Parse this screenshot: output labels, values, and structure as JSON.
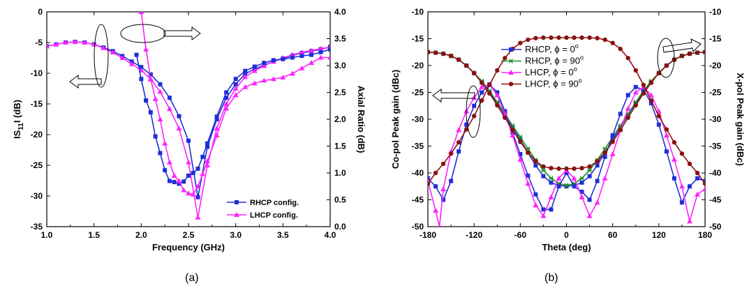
{
  "colors": {
    "blue": "#1f2fd6",
    "magenta": "#ff22ff",
    "green": "#1e8f1e",
    "darkred": "#8b1010",
    "axis": "#000000"
  },
  "chart_data": [
    {
      "type": "line",
      "panel_label": "(a)",
      "xlabel": "Frequency (GHz)",
      "ylabel_left": "IS11I (dB)",
      "ylabel_left_main": "IS",
      "ylabel_left_sub": "11",
      "ylabel_left_tail": "I (dB)",
      "ylabel_right": "Axial Ratio (dB)",
      "xlim": [
        1.0,
        4.0
      ],
      "ylim_left": [
        -35,
        0
      ],
      "ylim_right": [
        0.0,
        4.0
      ],
      "x_ticks": [
        "1.0",
        "1.5",
        "2.0",
        "2.5",
        "3.0",
        "3.5",
        "4.0"
      ],
      "y_ticks_left": [
        "0",
        "-5",
        "-10",
        "-15",
        "-20",
        "-25",
        "-30",
        "-35"
      ],
      "y_ticks_right": [
        "4.0",
        "3.5",
        "3.0",
        "2.5",
        "2.0",
        "1.5",
        "1.0",
        "0.5",
        "0.0"
      ],
      "legend_position": "bottom-right",
      "legend": [
        "RHCP config.",
        "LHCP config."
      ],
      "series": [
        {
          "name": "RHCP config.",
          "axis": "left",
          "marker": "square",
          "color_key": "blue",
          "x": [
            1.0,
            1.1,
            1.2,
            1.3,
            1.4,
            1.5,
            1.6,
            1.7,
            1.8,
            1.9,
            2.0,
            2.1,
            2.2,
            2.3,
            2.4,
            2.5,
            2.6,
            2.7,
            2.8,
            2.9,
            3.0,
            3.1,
            3.2,
            3.3,
            3.4,
            3.5,
            3.6,
            3.7,
            3.8,
            3.9,
            4.0
          ],
          "y": [
            -5.6,
            -5.3,
            -5.0,
            -4.9,
            -5.0,
            -5.3,
            -5.8,
            -6.4,
            -7.2,
            -8.1,
            -9.0,
            -10.2,
            -11.8,
            -14.0,
            -17.0,
            -21.0,
            -30.2,
            -22.0,
            -17.5,
            -14.0,
            -11.8,
            -10.1,
            -9.3,
            -8.7,
            -8.1,
            -7.6,
            -7.1,
            -6.7,
            -6.4,
            -6.1,
            -5.7
          ]
        },
        {
          "name": "LHCP config.",
          "axis": "left",
          "marker": "triangle",
          "color_key": "magenta",
          "x": [
            1.0,
            1.1,
            1.2,
            1.3,
            1.4,
            1.5,
            1.6,
            1.7,
            1.8,
            1.9,
            2.0,
            2.1,
            2.2,
            2.3,
            2.4,
            2.5,
            2.6,
            2.7,
            2.8,
            2.9,
            3.0,
            3.1,
            3.2,
            3.3,
            3.4,
            3.5,
            3.6,
            3.7,
            3.8,
            3.9,
            4.0
          ],
          "y": [
            -5.6,
            -5.3,
            -5.0,
            -4.9,
            -5.0,
            -5.3,
            -5.9,
            -6.6,
            -7.5,
            -8.5,
            -9.5,
            -11.0,
            -13.0,
            -15.8,
            -19.0,
            -24.5,
            -33.5,
            -25.0,
            -19.0,
            -15.0,
            -12.5,
            -10.6,
            -9.6,
            -8.8,
            -8.1,
            -7.5,
            -7.0,
            -6.6,
            -6.3,
            -6.0,
            -5.8
          ]
        },
        {
          "name": "RHCP config.",
          "axis": "right",
          "marker": "square",
          "color_key": "blue",
          "x": [
            1.95,
            2.0,
            2.05,
            2.1,
            2.15,
            2.2,
            2.25,
            2.3,
            2.35,
            2.4,
            2.45,
            2.5,
            2.55,
            2.6,
            2.65,
            2.7,
            2.8,
            2.9,
            3.0,
            3.1,
            3.2,
            3.3,
            3.4,
            3.5,
            3.6,
            3.7,
            3.8,
            3.9,
            4.0
          ],
          "y": [
            3.2,
            2.75,
            2.35,
            2.13,
            1.68,
            1.37,
            1.05,
            0.85,
            0.83,
            0.8,
            0.84,
            0.95,
            1.0,
            1.08,
            1.3,
            1.55,
            2.05,
            2.5,
            2.75,
            2.9,
            2.98,
            3.05,
            3.1,
            3.12,
            3.15,
            3.18,
            3.2,
            3.25,
            3.3
          ]
        },
        {
          "name": "LHCP config.",
          "axis": "right",
          "marker": "triangle",
          "color_key": "magenta",
          "x": [
            2.0,
            2.05,
            2.1,
            2.15,
            2.2,
            2.25,
            2.3,
            2.35,
            2.4,
            2.45,
            2.5,
            2.55,
            2.6,
            2.65,
            2.7,
            2.8,
            2.9,
            3.0,
            3.1,
            3.2,
            3.3,
            3.4,
            3.5,
            3.6,
            3.7,
            3.8,
            3.9,
            4.0
          ],
          "y": [
            4.0,
            3.3,
            2.75,
            2.38,
            2.0,
            1.55,
            1.2,
            0.95,
            0.85,
            0.68,
            0.62,
            0.6,
            0.75,
            0.98,
            1.22,
            1.7,
            2.2,
            2.45,
            2.6,
            2.67,
            2.72,
            2.75,
            2.78,
            2.85,
            2.95,
            3.05,
            3.15,
            3.15
          ]
        }
      ]
    },
    {
      "type": "line",
      "panel_label": "(b)",
      "xlabel": "Theta (deg)",
      "ylabel_left": "Co-pol Peak gain (dBc)",
      "ylabel_right": "X-pol Peak gain (dBc)",
      "xlim": [
        -180,
        180
      ],
      "ylim_left": [
        -50,
        -10
      ],
      "ylim_right": [
        -50,
        -10
      ],
      "x_ticks": [
        "-180",
        "-120",
        "-60",
        "0",
        "60",
        "120",
        "180"
      ],
      "y_ticks_left": [
        "-10",
        "-15",
        "-20",
        "-25",
        "-30",
        "-35",
        "-40",
        "-45",
        "-50"
      ],
      "y_ticks_right": [
        "-10",
        "-15",
        "-20",
        "-25",
        "-30",
        "-35",
        "-40",
        "-45",
        "-50"
      ],
      "legend_position": "top-center",
      "legend": [
        {
          "prefix": "RHCP, ",
          "phi": "ϕ",
          "eq": " = 0",
          "deg": "o"
        },
        {
          "prefix": "RHCP, ",
          "phi": "ϕ",
          "eq": " = 90",
          "deg": "o"
        },
        {
          "prefix": "LHCP, ",
          "phi": "ϕ",
          "eq": " = 0",
          "deg": "o"
        },
        {
          "prefix": "LHCP, ",
          "phi": "ϕ",
          "eq": " = 90",
          "deg": "o"
        }
      ],
      "series": [
        {
          "name": "RHCP, ϕ = 0o",
          "marker": "square",
          "color_key": "blue",
          "x": [
            -180,
            -170,
            -160,
            -150,
            -140,
            -130,
            -120,
            -110,
            -100,
            -90,
            -80,
            -70,
            -60,
            -50,
            -40,
            -30,
            -20,
            -10,
            0,
            10,
            20,
            30,
            40,
            50,
            60,
            70,
            80,
            90,
            100,
            110,
            120,
            130,
            140,
            150,
            160,
            170,
            180
          ],
          "y": [
            -17.5,
            -17.6,
            -17.8,
            -18.2,
            -18.9,
            -20.0,
            -21.4,
            -23.1,
            -25.0,
            -27.0,
            -29.2,
            -31.5,
            -33.8,
            -36.2,
            -38.6,
            -40.6,
            -41.8,
            -42.3,
            -42.5,
            -42.3,
            -41.8,
            -40.6,
            -38.6,
            -36.2,
            -33.8,
            -31.5,
            -29.2,
            -27.0,
            -25.0,
            -23.1,
            -21.4,
            -20.0,
            -18.9,
            -18.2,
            -17.8,
            -17.6,
            -17.5
          ]
        },
        {
          "name": "RHCP, ϕ = 90o",
          "marker": "star",
          "color_key": "green",
          "x": [
            -180,
            -170,
            -160,
            -150,
            -140,
            -130,
            -120,
            -110,
            -100,
            -90,
            -80,
            -70,
            -60,
            -50,
            -40,
            -30,
            -20,
            -10,
            0,
            10,
            20,
            30,
            40,
            50,
            60,
            70,
            80,
            90,
            100,
            110,
            120,
            130,
            140,
            150,
            160,
            170,
            180
          ],
          "y": [
            -17.5,
            -17.6,
            -17.8,
            -18.2,
            -18.9,
            -20.0,
            -21.4,
            -22.9,
            -24.7,
            -26.8,
            -29.0,
            -31.2,
            -33.3,
            -35.5,
            -37.6,
            -39.5,
            -41.0,
            -42.0,
            -42.3,
            -42.0,
            -41.0,
            -39.5,
            -37.6,
            -35.5,
            -33.3,
            -31.2,
            -29.0,
            -26.8,
            -24.7,
            -22.9,
            -21.4,
            -20.0,
            -18.9,
            -18.2,
            -17.8,
            -17.6,
            -17.5
          ]
        },
        {
          "name": "RHCP, ϕ = 0o (X-pol)",
          "marker": "square",
          "color_key": "blue",
          "x": [
            -180,
            -170,
            -160,
            -150,
            -140,
            -130,
            -120,
            -110,
            -100,
            -90,
            -80,
            -70,
            -60,
            -50,
            -40,
            -30,
            -20,
            -10,
            0,
            10,
            20,
            30,
            40,
            50,
            60,
            70,
            80,
            90,
            100,
            110,
            120,
            130,
            140,
            150,
            160,
            170,
            180
          ],
          "y": [
            -41.0,
            -42.5,
            -45.0,
            -41.5,
            -36.0,
            -31.0,
            -27.5,
            -25.0,
            -23.5,
            -25.0,
            -28.5,
            -32.5,
            -36.5,
            -40.5,
            -44.0,
            -46.8,
            -46.8,
            -42.5,
            -40.0,
            -42.5,
            -43.5,
            -45.0,
            -41.5,
            -37.0,
            -33.0,
            -29.0,
            -25.5,
            -24.0,
            -24.5,
            -27.0,
            -31.0,
            -36.0,
            -41.0,
            -45.5,
            -42.5,
            -41.0,
            -41.5
          ]
        },
        {
          "name": "LHCP, ϕ = 0o",
          "marker": "triangle",
          "color_key": "magenta",
          "x": [
            -180,
            -170,
            -165,
            -160,
            -150,
            -140,
            -130,
            -120,
            -110,
            -100,
            -90,
            -80,
            -70,
            -60,
            -50,
            -40,
            -30,
            -20,
            -10,
            0,
            10,
            20,
            30,
            40,
            50,
            60,
            70,
            80,
            90,
            100,
            110,
            120,
            130,
            140,
            150,
            160,
            170,
            180
          ],
          "y": [
            -41.5,
            -47.0,
            -50.0,
            -43.0,
            -36.0,
            -32.0,
            -28.5,
            -26.0,
            -24.0,
            -23.5,
            -25.5,
            -29.0,
            -33.0,
            -37.5,
            -42.0,
            -46.0,
            -48.0,
            -44.5,
            -41.0,
            -39.5,
            -41.0,
            -44.5,
            -48.0,
            -45.5,
            -41.0,
            -36.5,
            -32.0,
            -28.0,
            -25.0,
            -24.0,
            -25.5,
            -28.5,
            -33.0,
            -37.5,
            -42.5,
            -49.0,
            -44.0,
            -43.0
          ]
        },
        {
          "name": "LHCP, ϕ = 90o",
          "marker": "circle",
          "color_key": "darkred",
          "x": [
            -180,
            -170,
            -160,
            -150,
            -140,
            -130,
            -120,
            -110,
            -100,
            -90,
            -80,
            -70,
            -60,
            -50,
            -40,
            -30,
            -20,
            -10,
            0,
            10,
            20,
            30,
            40,
            50,
            60,
            70,
            80,
            90,
            100,
            110,
            120,
            130,
            140,
            150,
            160,
            170,
            180
          ],
          "y": [
            -42.0,
            -40.0,
            -38.3,
            -36.4,
            -34.3,
            -31.9,
            -29.4,
            -26.5,
            -23.6,
            -20.9,
            -18.6,
            -16.9,
            -15.8,
            -15.2,
            -14.9,
            -14.8,
            -14.8,
            -14.8,
            -14.8,
            -14.8,
            -14.8,
            -14.8,
            -14.9,
            -15.2,
            -15.8,
            -16.9,
            -18.6,
            -20.9,
            -23.6,
            -26.5,
            -29.4,
            -31.9,
            -34.3,
            -36.4,
            -38.3,
            -40.0,
            -42.0
          ]
        },
        {
          "name": "LHCP, ϕ = 90o (X-pol)",
          "marker": "circle",
          "color_key": "darkred",
          "x": [
            -180,
            -170,
            -160,
            -150,
            -140,
            -130,
            -120,
            -110,
            -100,
            -90,
            -80,
            -70,
            -60,
            -50,
            -40,
            -30,
            -20,
            -10,
            0,
            10,
            20,
            30,
            40,
            50,
            60,
            70,
            80,
            90,
            100,
            110,
            120,
            130,
            140,
            150,
            160,
            170,
            180
          ],
          "y": [
            -17.5,
            -17.6,
            -17.8,
            -18.2,
            -18.9,
            -20.0,
            -21.4,
            -23.2,
            -25.2,
            -27.4,
            -29.7,
            -32.0,
            -34.2,
            -36.2,
            -37.8,
            -38.8,
            -39.1,
            -39.2,
            -39.2,
            -39.2,
            -39.1,
            -38.8,
            -37.8,
            -36.2,
            -34.2,
            -32.0,
            -29.7,
            -27.4,
            -25.2,
            -23.2,
            -21.4,
            -20.0,
            -18.9,
            -18.2,
            -17.8,
            -17.6,
            -17.5
          ]
        }
      ]
    }
  ]
}
